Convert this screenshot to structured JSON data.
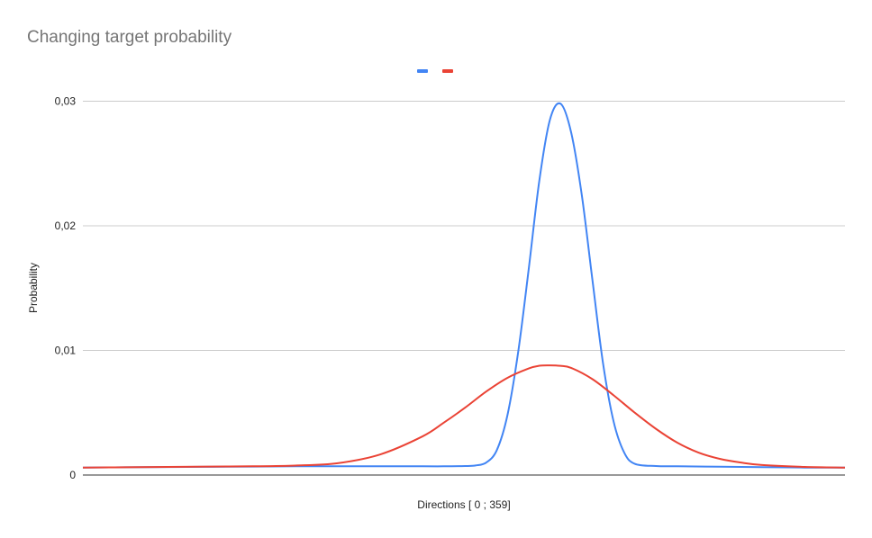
{
  "chart_data": {
    "type": "line",
    "title": "Changing target probability",
    "xlabel": "Directions  [ 0 ; 359]",
    "ylabel": "Probability",
    "xlim": [
      0,
      359
    ],
    "ylim": [
      0,
      0.03
    ],
    "yticks": [
      {
        "value": 0,
        "label": "0"
      },
      {
        "value": 0.01,
        "label": "0,01"
      },
      {
        "value": 0.02,
        "label": "0,02"
      },
      {
        "value": 0.03,
        "label": "0,03"
      }
    ],
    "grid": true,
    "legend_position": "top",
    "series": [
      {
        "color": "#4285F4",
        "x": [
          0,
          20,
          40,
          60,
          80,
          100,
          120,
          140,
          160,
          170,
          180,
          185,
          190,
          195,
          200,
          205,
          210,
          215,
          220,
          225,
          230,
          235,
          240,
          245,
          250,
          255,
          260,
          270,
          280,
          300,
          320,
          340,
          359
        ],
        "values": [
          0.0006,
          0.00062,
          0.00064,
          0.00066,
          0.00068,
          0.0007,
          0.0007,
          0.0007,
          0.0007,
          0.0007,
          0.00072,
          0.00077,
          0.001,
          0.002,
          0.0048,
          0.0098,
          0.0165,
          0.0236,
          0.0285,
          0.0298,
          0.0275,
          0.0225,
          0.0157,
          0.009,
          0.0043,
          0.0018,
          0.0009,
          0.00072,
          0.0007,
          0.00067,
          0.00063,
          0.0006,
          0.0006
        ]
      },
      {
        "color": "#EA4335",
        "x": [
          0,
          20,
          40,
          60,
          80,
          100,
          120,
          140,
          160,
          170,
          180,
          190,
          200,
          210,
          215,
          220,
          225,
          230,
          240,
          250,
          260,
          270,
          280,
          290,
          300,
          310,
          320,
          340,
          359
        ],
        "values": [
          0.0006,
          0.00062,
          0.00065,
          0.00068,
          0.0007,
          0.00076,
          0.00095,
          0.00165,
          0.0031,
          0.0042,
          0.0054,
          0.0067,
          0.0078,
          0.00855,
          0.00877,
          0.0088,
          0.00876,
          0.0086,
          0.0077,
          0.0064,
          0.005,
          0.0037,
          0.0026,
          0.0018,
          0.0013,
          0.001,
          0.0008,
          0.00065,
          0.0006
        ]
      }
    ]
  }
}
